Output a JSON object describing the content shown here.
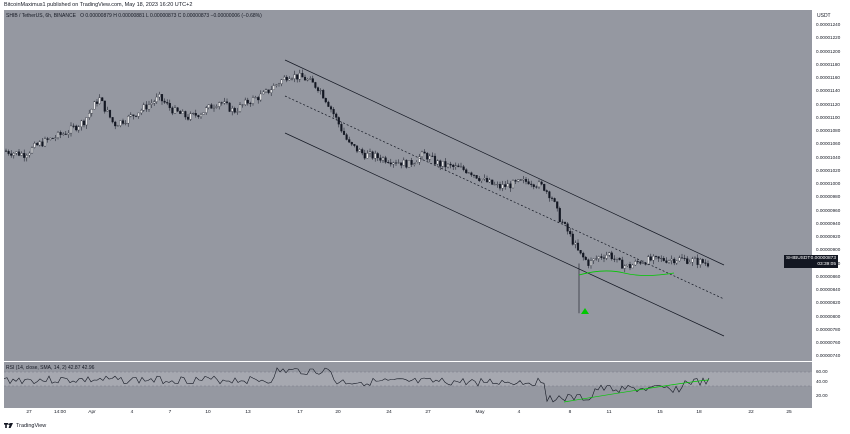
{
  "header": {
    "published_text": "BitcoinMaximus1 published on TradingView.com, May 18, 2023 16:20 UTC+2"
  },
  "legend": {
    "symbol": "SHIB / TetherUS, 6h, BINANCE",
    "ohlc": "O 0.00000879  H 0.00000881  L 0.00000873  C 0.00000873  −0.00000006 (−0.68%)"
  },
  "rsi": {
    "legend": "RSI (14, close, SMA, 14, 2)  42.87  42.96",
    "levels": [
      "60.00",
      "40.00",
      "20.00"
    ]
  },
  "price_axis": {
    "currency": "USDT",
    "labels": [
      "0.00001240",
      "0.00001220",
      "0.00001200",
      "0.00001180",
      "0.00001160",
      "0.00001140",
      "0.00001120",
      "0.00001100",
      "0.00001080",
      "0.00001060",
      "0.00001040",
      "0.00001020",
      "0.00001000",
      "0.00000980",
      "0.00000960",
      "0.00000940",
      "0.00000920",
      "0.00000900",
      "0.00000880",
      "0.00000860",
      "0.00000840",
      "0.00000820",
      "0.00000800",
      "0.00000780",
      "0.00000760",
      "0.00000740"
    ]
  },
  "price_tag": {
    "symbol": "SHIBUSDT",
    "price": "0.00000873",
    "countdown": "03:39:05"
  },
  "time_axis": {
    "labels": [
      "27",
      "14:00",
      "Apr",
      "4",
      "7",
      "10",
      "13",
      "17",
      "20",
      "24",
      "27",
      "May",
      "4",
      "8",
      "11",
      "15",
      "18",
      "22",
      "25"
    ]
  },
  "footer": {
    "brand": "TradingView"
  },
  "colors": {
    "pane": "#9598a1",
    "candle": "#131722",
    "channel": "#131722",
    "arrow": "#00c800",
    "rsi_sma": "#00c800"
  }
}
